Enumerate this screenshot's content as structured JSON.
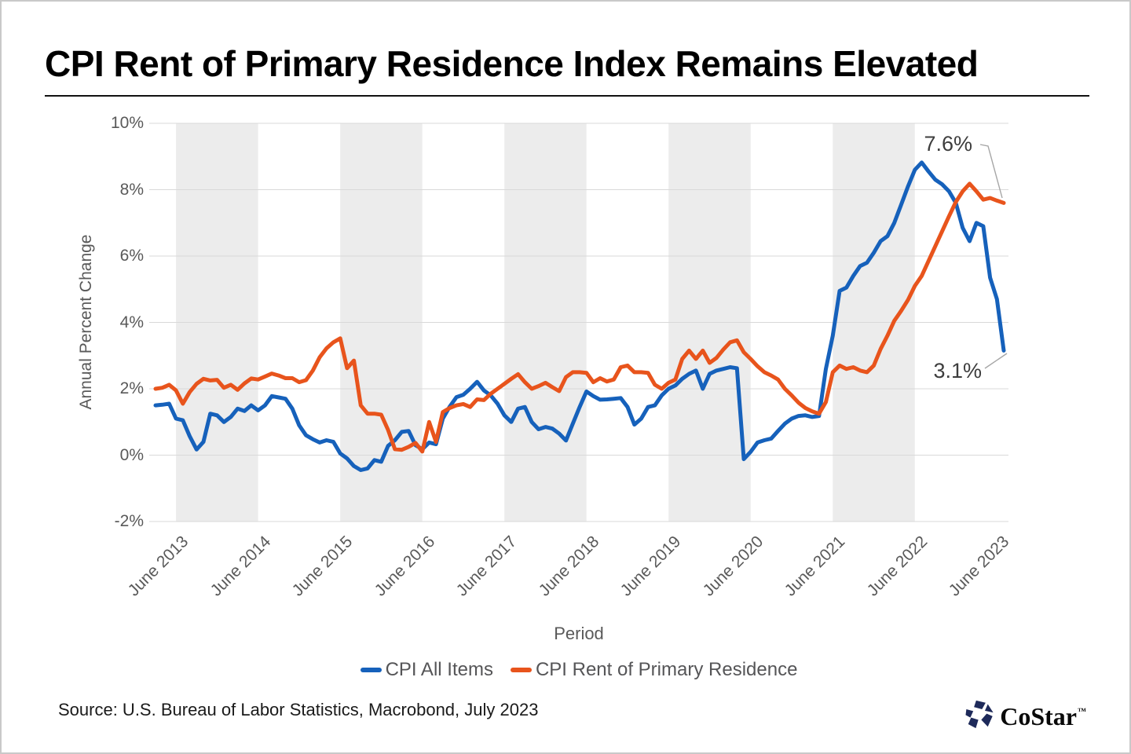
{
  "header": {
    "title": "CPI Rent of Primary Residence Index Remains Elevated"
  },
  "chart": {
    "y_axis_title": "Annual Percent Change",
    "x_axis_title": "Period",
    "annotations": {
      "rent_end_label": "7.6%",
      "all_items_end_label": "3.1%"
    }
  },
  "legend": {
    "items": [
      {
        "label": "CPI All Items",
        "color": "#1661BB"
      },
      {
        "label": "CPI Rent of Primary Residence",
        "color": "#E8541C"
      }
    ]
  },
  "footer": {
    "source": "Source: U.S. Bureau of Labor Statistics, Macrobond,  July 2023",
    "logo_text": "CoStar",
    "logo_tm": "™"
  },
  "chart_data": {
    "type": "line",
    "title": "CPI Rent of Primary Residence Index Remains Elevated",
    "xlabel": "Period",
    "ylabel": "Annual Percent Change",
    "x_frequency": "monthly",
    "x_start": "2013-03",
    "x_end": "2023-07",
    "ylim": [
      -2,
      10
    ],
    "grid": true,
    "legend_position": "bottom",
    "y_ticks": [
      {
        "value": 10,
        "label": "10%"
      },
      {
        "value": 8,
        "label": "8%"
      },
      {
        "value": 6,
        "label": "6%"
      },
      {
        "value": 4,
        "label": "4%"
      },
      {
        "value": 2,
        "label": "2%"
      },
      {
        "value": 0,
        "label": "0%"
      },
      {
        "value": -2,
        "label": "-2%"
      }
    ],
    "x_tick_indices": [
      3,
      15,
      27,
      39,
      51,
      63,
      75,
      87,
      99,
      111,
      123
    ],
    "x_tick_labels": [
      "June 2013",
      "June 2014",
      "June 2015",
      "June 2016",
      "June 2017",
      "June 2018",
      "June 2019",
      "June 2020",
      "June 2021",
      "June 2022",
      "June 2023"
    ],
    "shaded_band_tick_spans": [
      [
        0,
        1
      ],
      [
        2,
        3
      ],
      [
        4,
        5
      ],
      [
        6,
        7
      ],
      [
        8,
        9
      ]
    ],
    "style": {
      "band_fill": "#ECECEC",
      "grid_color": "#D9D9D9",
      "line_width": 5
    },
    "series": [
      {
        "name": "CPI All Items",
        "color": "#1661BB",
        "end_label": "3.1%",
        "values": [
          1.5,
          1.52,
          1.55,
          1.1,
          1.05,
          0.57,
          0.17,
          0.4,
          1.25,
          1.2,
          1.0,
          1.15,
          1.4,
          1.33,
          1.5,
          1.35,
          1.5,
          1.78,
          1.74,
          1.7,
          1.4,
          0.9,
          0.6,
          0.48,
          0.38,
          0.45,
          0.4,
          0.05,
          -0.1,
          -0.33,
          -0.45,
          -0.4,
          -0.15,
          -0.2,
          0.28,
          0.45,
          0.7,
          0.73,
          0.3,
          0.18,
          0.38,
          0.33,
          1.1,
          1.46,
          1.75,
          1.82,
          2.0,
          2.21,
          1.95,
          1.8,
          1.55,
          1.2,
          1.0,
          1.4,
          1.45,
          1.0,
          0.78,
          0.85,
          0.8,
          0.65,
          0.44,
          0.95,
          1.45,
          1.92,
          1.78,
          1.67,
          1.68,
          1.7,
          1.72,
          1.45,
          0.92,
          1.1,
          1.45,
          1.5,
          1.8,
          2.0,
          2.1,
          2.3,
          2.45,
          2.55,
          2.0,
          2.45,
          2.55,
          2.6,
          2.65,
          2.62,
          -0.12,
          0.1,
          0.38,
          0.45,
          0.5,
          0.73,
          0.95,
          1.1,
          1.18,
          1.2,
          1.15,
          1.18,
          2.6,
          3.6,
          4.95,
          5.05,
          5.4,
          5.7,
          5.8,
          6.1,
          6.45,
          6.6,
          7.0,
          7.55,
          8.1,
          8.6,
          8.82,
          8.55,
          8.3,
          8.16,
          7.95,
          7.6,
          6.85,
          6.45,
          7.0,
          6.9,
          5.35,
          4.7,
          3.15
        ]
      },
      {
        "name": "CPI Rent of Primary Residence",
        "color": "#E8541C",
        "end_label": "7.6%",
        "values": [
          2.0,
          2.03,
          2.12,
          1.95,
          1.55,
          1.9,
          2.15,
          2.3,
          2.25,
          2.27,
          2.03,
          2.12,
          1.97,
          2.16,
          2.31,
          2.28,
          2.37,
          2.46,
          2.4,
          2.32,
          2.32,
          2.2,
          2.26,
          2.55,
          2.95,
          3.22,
          3.4,
          3.52,
          2.62,
          2.85,
          1.5,
          1.25,
          1.25,
          1.22,
          0.76,
          0.18,
          0.16,
          0.25,
          0.37,
          0.11,
          1.0,
          0.4,
          1.3,
          1.42,
          1.5,
          1.54,
          1.45,
          1.68,
          1.66,
          1.85,
          2.0,
          2.15,
          2.3,
          2.44,
          2.2,
          2.0,
          2.08,
          2.18,
          2.05,
          1.93,
          2.35,
          2.5,
          2.5,
          2.48,
          2.2,
          2.32,
          2.22,
          2.28,
          2.65,
          2.7,
          2.5,
          2.5,
          2.48,
          2.12,
          2.0,
          2.18,
          2.28,
          2.9,
          3.15,
          2.9,
          3.15,
          2.78,
          2.93,
          3.18,
          3.4,
          3.46,
          3.1,
          2.9,
          2.68,
          2.5,
          2.4,
          2.28,
          2.0,
          1.8,
          1.58,
          1.42,
          1.32,
          1.25,
          1.6,
          2.5,
          2.7,
          2.6,
          2.65,
          2.55,
          2.5,
          2.7,
          3.2,
          3.6,
          4.05,
          4.35,
          4.68,
          5.1,
          5.4,
          5.85,
          6.3,
          6.75,
          7.2,
          7.63,
          7.95,
          8.18,
          7.95,
          7.7,
          7.75,
          7.67,
          7.6
        ]
      }
    ]
  }
}
